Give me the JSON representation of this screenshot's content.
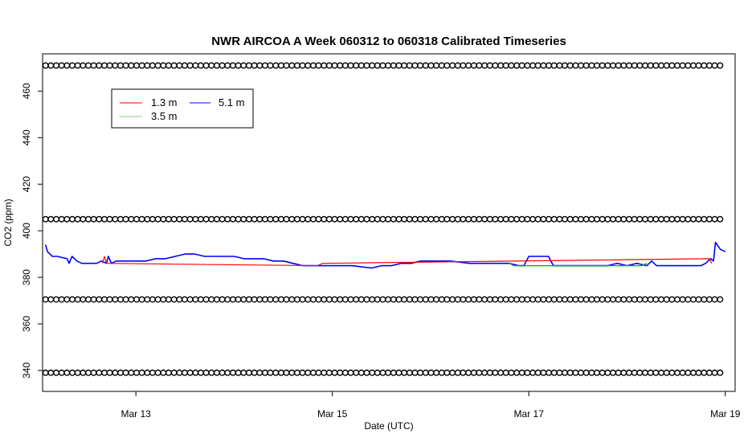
{
  "chart_data": {
    "type": "line",
    "title": "NWR AIRCOA A  Week 060312 to 060318  Calibrated Timeseries",
    "xlabel": "Date (UTC)",
    "ylabel": "CO2 (ppm)",
    "xlim": [
      12.05,
      19.1
    ],
    "ylim": [
      331,
      476
    ],
    "yticks": [
      340,
      360,
      380,
      400,
      420,
      440,
      460
    ],
    "xticks": [
      {
        "value": 13,
        "label": "Mar 13"
      },
      {
        "value": 15,
        "label": "Mar 15"
      },
      {
        "value": 17,
        "label": "Mar 17"
      },
      {
        "value": 19,
        "label": "Mar 19"
      }
    ],
    "legend": {
      "placement": "top-left",
      "entries": [
        {
          "label": "1.3 m",
          "color": "#ff0000"
        },
        {
          "label": "3.5 m",
          "color": "#00aa00"
        },
        {
          "label": "5.1 m",
          "color": "#0000ff"
        }
      ]
    },
    "series": [
      {
        "name": "5.1 m",
        "color": "#0000ff",
        "x": [
          12.08,
          12.1,
          12.15,
          12.2,
          12.3,
          12.32,
          12.35,
          12.4,
          12.45,
          12.5,
          12.55,
          12.6,
          12.65,
          12.7,
          12.72,
          12.75,
          12.8,
          12.9,
          13.0,
          13.1,
          13.2,
          13.3,
          13.4,
          13.5,
          13.6,
          13.7,
          13.8,
          13.9,
          14.0,
          14.1,
          14.2,
          14.3,
          14.4,
          14.5,
          14.6,
          14.7,
          14.8,
          14.9,
          15.0,
          15.2,
          15.4,
          15.5,
          15.6,
          15.7,
          15.8,
          15.9,
          16.0,
          16.1,
          16.2,
          16.4,
          16.6,
          16.8,
          16.9,
          16.95,
          17.0,
          17.1,
          17.2,
          17.25,
          17.3,
          17.4,
          17.5,
          17.6,
          17.7,
          17.8,
          17.9,
          18.0,
          18.1,
          18.2,
          18.25,
          18.3,
          18.4,
          18.5,
          18.6,
          18.7,
          18.75,
          18.8,
          18.85,
          18.88,
          18.9,
          18.95,
          19.0
        ],
        "y": [
          394,
          391,
          389,
          389,
          388,
          386,
          389,
          387,
          386,
          386,
          386,
          386,
          387,
          386,
          389,
          386,
          387,
          387,
          387,
          387,
          388,
          388,
          389,
          390,
          390,
          389,
          389,
          389,
          389,
          388,
          388,
          388,
          387,
          387,
          386,
          385,
          385,
          385,
          385,
          385,
          384,
          385,
          385,
          386,
          386,
          387,
          387,
          387,
          387,
          386,
          386,
          386,
          385,
          385,
          389,
          389,
          389,
          385,
          385,
          385,
          385,
          385,
          385,
          385,
          386,
          385,
          386,
          385,
          387,
          385,
          385,
          385,
          385,
          385,
          385,
          386,
          388,
          387,
          395,
          392,
          391
        ]
      },
      {
        "name": "1.3 m",
        "color": "#ff0000",
        "x": [
          12.66,
          12.68,
          12.7,
          14.85,
          14.9,
          18.84,
          18.86
        ],
        "y": [
          386,
          389,
          386,
          385,
          386,
          388,
          386
        ]
      },
      {
        "name": "3.5 m",
        "color": "#00aa00",
        "x": [
          16.8,
          16.85,
          18.15,
          18.2
        ],
        "y": [
          386,
          385,
          385,
          386
        ]
      }
    ],
    "flag_rows": [
      {
        "name": "flags-471",
        "y": 471
      },
      {
        "name": "flags-405",
        "y": 405
      },
      {
        "name": "flags-370",
        "y": 370.5
      },
      {
        "name": "flags-339",
        "y": 339
      }
    ],
    "flag_x_start": 12.08,
    "flag_x_end": 19.0,
    "flag_x_step": 0.0545
  }
}
